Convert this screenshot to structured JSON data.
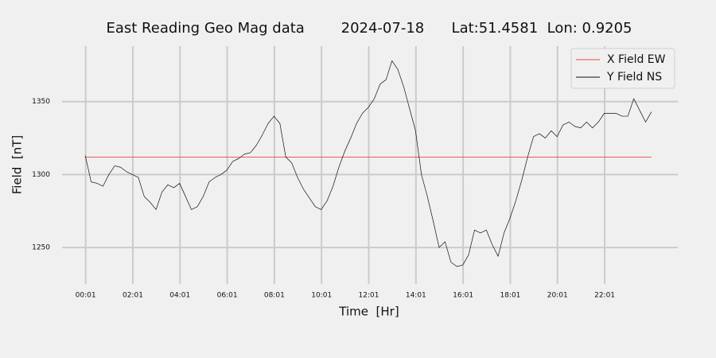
{
  "chart_data": {
    "type": "line",
    "title": "East Reading Geo Mag data        2024-07-18      Lat:51.4581  Lon: 0.9205",
    "xlabel": "Time  [Hr]",
    "ylabel": "Field  [nT]",
    "x": [
      0,
      15,
      30,
      45,
      60,
      75,
      90,
      105,
      120,
      135,
      150,
      165,
      180,
      195,
      210,
      225,
      240,
      255,
      270,
      285,
      300,
      315,
      330,
      345,
      360,
      375,
      390,
      405,
      420,
      435,
      450,
      465,
      480,
      495,
      510,
      525,
      540,
      555,
      570,
      585,
      600,
      615,
      630,
      645,
      660,
      675,
      690,
      705,
      720,
      735,
      750,
      765,
      780,
      795,
      810,
      825,
      840,
      855,
      870,
      885,
      900,
      915,
      930,
      945,
      960,
      975,
      990,
      1005,
      1020,
      1035,
      1050,
      1065,
      1080,
      1095,
      1110,
      1125,
      1140,
      1155,
      1170,
      1185,
      1200,
      1215,
      1230,
      1245,
      1260,
      1275,
      1290,
      1305,
      1320,
      1335,
      1350,
      1365,
      1380,
      1395,
      1410,
      1425,
      1440
    ],
    "series": [
      {
        "name": "X Field EW",
        "color": "#e8473f",
        "values": [
          1312,
          1312,
          1312,
          1312,
          1312,
          1312,
          1312,
          1312,
          1312,
          1312,
          1312,
          1312,
          1312,
          1312,
          1312,
          1312,
          1312,
          1312,
          1312,
          1312,
          1312,
          1312,
          1312,
          1312,
          1312,
          1312,
          1312,
          1312,
          1312,
          1312,
          1312,
          1312,
          1312,
          1312,
          1312,
          1312,
          1312,
          1312,
          1312,
          1312,
          1312,
          1312,
          1312,
          1312,
          1312,
          1312,
          1312,
          1312,
          1312,
          1312,
          1312,
          1312,
          1312,
          1312,
          1312,
          1312,
          1312,
          1312,
          1312,
          1312,
          1312,
          1312,
          1312,
          1312,
          1312,
          1312,
          1312,
          1312,
          1312,
          1312,
          1312,
          1312,
          1312,
          1312,
          1312,
          1312,
          1312,
          1312,
          1312,
          1312,
          1312,
          1312,
          1312,
          1312,
          1312,
          1312,
          1312,
          1312,
          1312,
          1312,
          1312,
          1312,
          1312,
          1312,
          1312,
          1312,
          1312
        ]
      },
      {
        "name": "Y Field NS",
        "color": "#111111",
        "values": [
          1313,
          1295,
          1294,
          1292,
          1300,
          1306,
          1305,
          1302,
          1300,
          1298,
          1285,
          1281,
          1276,
          1288,
          1293,
          1291,
          1294,
          1285,
          1276,
          1278,
          1285,
          1295,
          1298,
          1300,
          1303,
          1309,
          1311,
          1314,
          1315,
          1320,
          1327,
          1335,
          1340,
          1335,
          1312,
          1308,
          1298,
          1290,
          1284,
          1278,
          1276,
          1282,
          1292,
          1305,
          1316,
          1325,
          1335,
          1342,
          1346,
          1352,
          1362,
          1365,
          1378,
          1372,
          1360,
          1345,
          1330,
          1300,
          1285,
          1268,
          1250,
          1254,
          1240,
          1237,
          1238,
          1245,
          1262,
          1260,
          1262,
          1252,
          1244,
          1260,
          1270,
          1282,
          1296,
          1312,
          1326,
          1328,
          1325,
          1330,
          1326,
          1334,
          1336,
          1333,
          1332,
          1336,
          1332,
          1336,
          1342,
          1342,
          1342,
          1340,
          1340,
          1352,
          1344,
          1336,
          1343
        ]
      }
    ],
    "xlim": [
      -59,
      1507
    ],
    "xticks": [
      {
        "value": 1,
        "label": "00:01"
      },
      {
        "value": 121,
        "label": "02:01"
      },
      {
        "value": 241,
        "label": "04:01"
      },
      {
        "value": 361,
        "label": "06:01"
      },
      {
        "value": 481,
        "label": "08:01"
      },
      {
        "value": 601,
        "label": "10:01"
      },
      {
        "value": 721,
        "label": "12:01"
      },
      {
        "value": 841,
        "label": "14:01"
      },
      {
        "value": 961,
        "label": "16:01"
      },
      {
        "value": 1081,
        "label": "18:01"
      },
      {
        "value": 1201,
        "label": "20:01"
      },
      {
        "value": 1321,
        "label": "22:01"
      }
    ],
    "ylim": [
      1237,
      1388
    ],
    "yticks": [
      1250,
      1300,
      1350
    ],
    "grid": true,
    "legend": "upper right"
  }
}
